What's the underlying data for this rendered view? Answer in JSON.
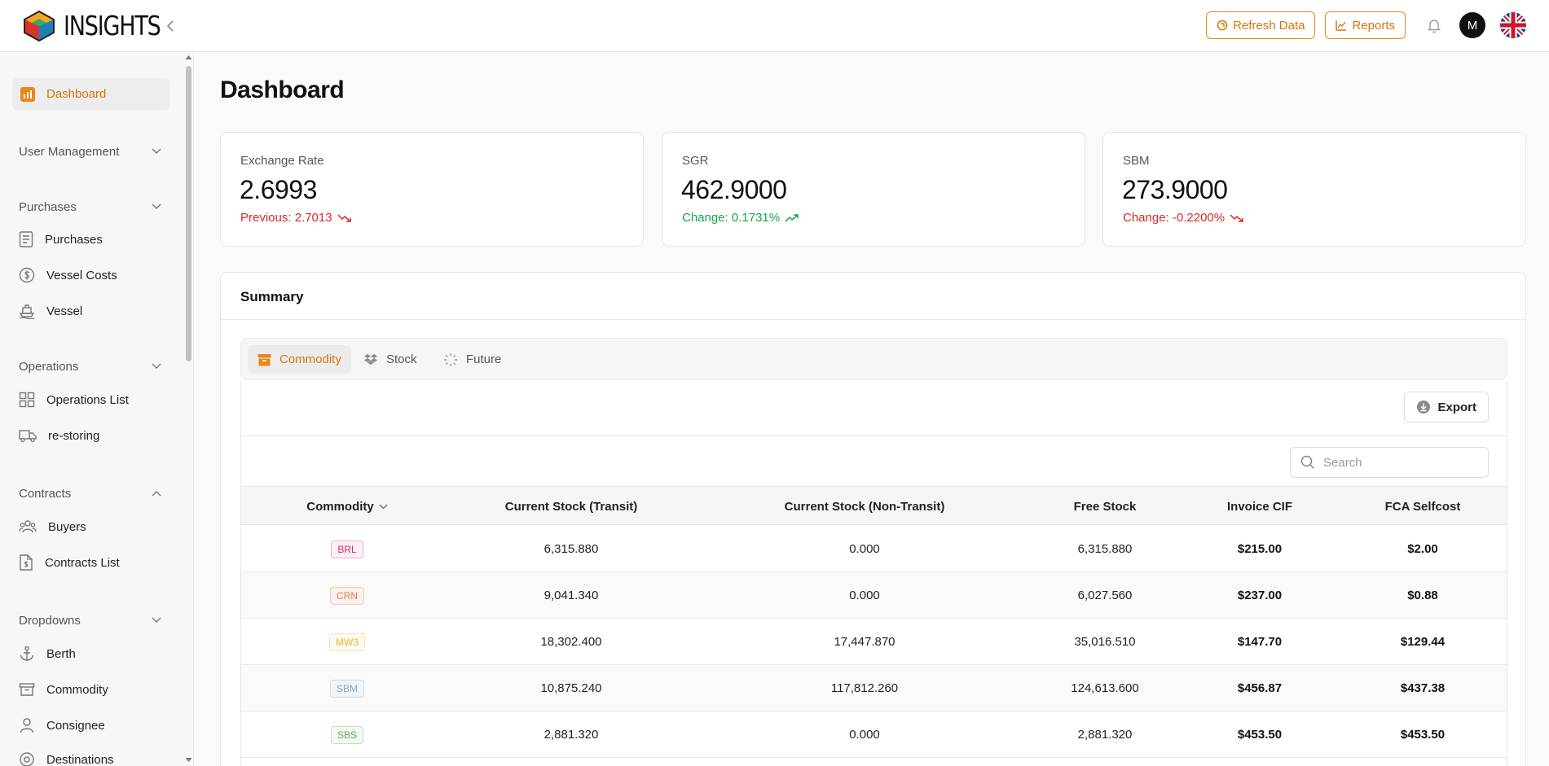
{
  "header": {
    "brand": "INSIGHTS",
    "refresh_label": "Refresh Data",
    "reports_label": "Reports",
    "avatar_initial": "M"
  },
  "sidebar": {
    "active": "Dashboard",
    "sections": [
      {
        "title": "User Management",
        "expanded": false,
        "items": []
      },
      {
        "title": "Purchases",
        "expanded": false,
        "items": [
          "Purchases",
          "Vessel Costs",
          "Vessel"
        ]
      },
      {
        "title": "Operations",
        "expanded": false,
        "items": [
          "Operations List",
          "re-storing"
        ]
      },
      {
        "title": "Contracts",
        "expanded": true,
        "items": [
          "Buyers",
          "Contracts List"
        ]
      },
      {
        "title": "Dropdowns",
        "expanded": false,
        "items": [
          "Berth",
          "Commodity",
          "Consignee",
          "Destinations"
        ]
      }
    ]
  },
  "page": {
    "title": "Dashboard"
  },
  "cards": [
    {
      "label": "Exchange Rate",
      "value": "2.6993",
      "change": "Previous: 2.7013",
      "trend": "down",
      "color": "#dc2626"
    },
    {
      "label": "SGR",
      "value": "462.9000",
      "change": "Change: 0.1731%",
      "trend": "up",
      "color": "#16a34a"
    },
    {
      "label": "SBM",
      "value": "273.9000",
      "change": "Change: -0.2200%",
      "trend": "down",
      "color": "#dc2626"
    }
  ],
  "summary": {
    "title": "Summary",
    "tabs": [
      "Commodity",
      "Stock",
      "Future"
    ],
    "active_tab": "Commodity",
    "export_label": "Export",
    "search_placeholder": "Search",
    "columns": [
      "Commodity",
      "Current Stock (Transit)",
      "Current Stock (Non-Transit)",
      "Free Stock",
      "Invoice CIF",
      "FCA Selfcost"
    ],
    "rows": [
      {
        "commodity": "BRL",
        "badge_color": "#db2777",
        "transit": "6,315.880",
        "non_transit": "0.000",
        "free": "6,315.880",
        "invoice_cif": "$215.00",
        "fca": "$2.00"
      },
      {
        "commodity": "CRN",
        "badge_color": "#ea7b4c",
        "transit": "9,041.340",
        "non_transit": "0.000",
        "free": "6,027.560",
        "invoice_cif": "$237.00",
        "fca": "$0.88"
      },
      {
        "commodity": "MW3",
        "badge_color": "#e9b53c",
        "transit": "18,302.400",
        "non_transit": "17,447.870",
        "free": "35,016.510",
        "invoice_cif": "$147.70",
        "fca": "$129.44"
      },
      {
        "commodity": "SBM",
        "badge_color": "#8aa7c8",
        "transit": "10,875.240",
        "non_transit": "117,812.260",
        "free": "124,613.600",
        "invoice_cif": "$456.87",
        "fca": "$437.38"
      },
      {
        "commodity": "SBS",
        "badge_color": "#5fa85f",
        "transit": "2,881.320",
        "non_transit": "0.000",
        "free": "2,881.320",
        "invoice_cif": "$453.50",
        "fca": "$453.50"
      }
    ]
  }
}
